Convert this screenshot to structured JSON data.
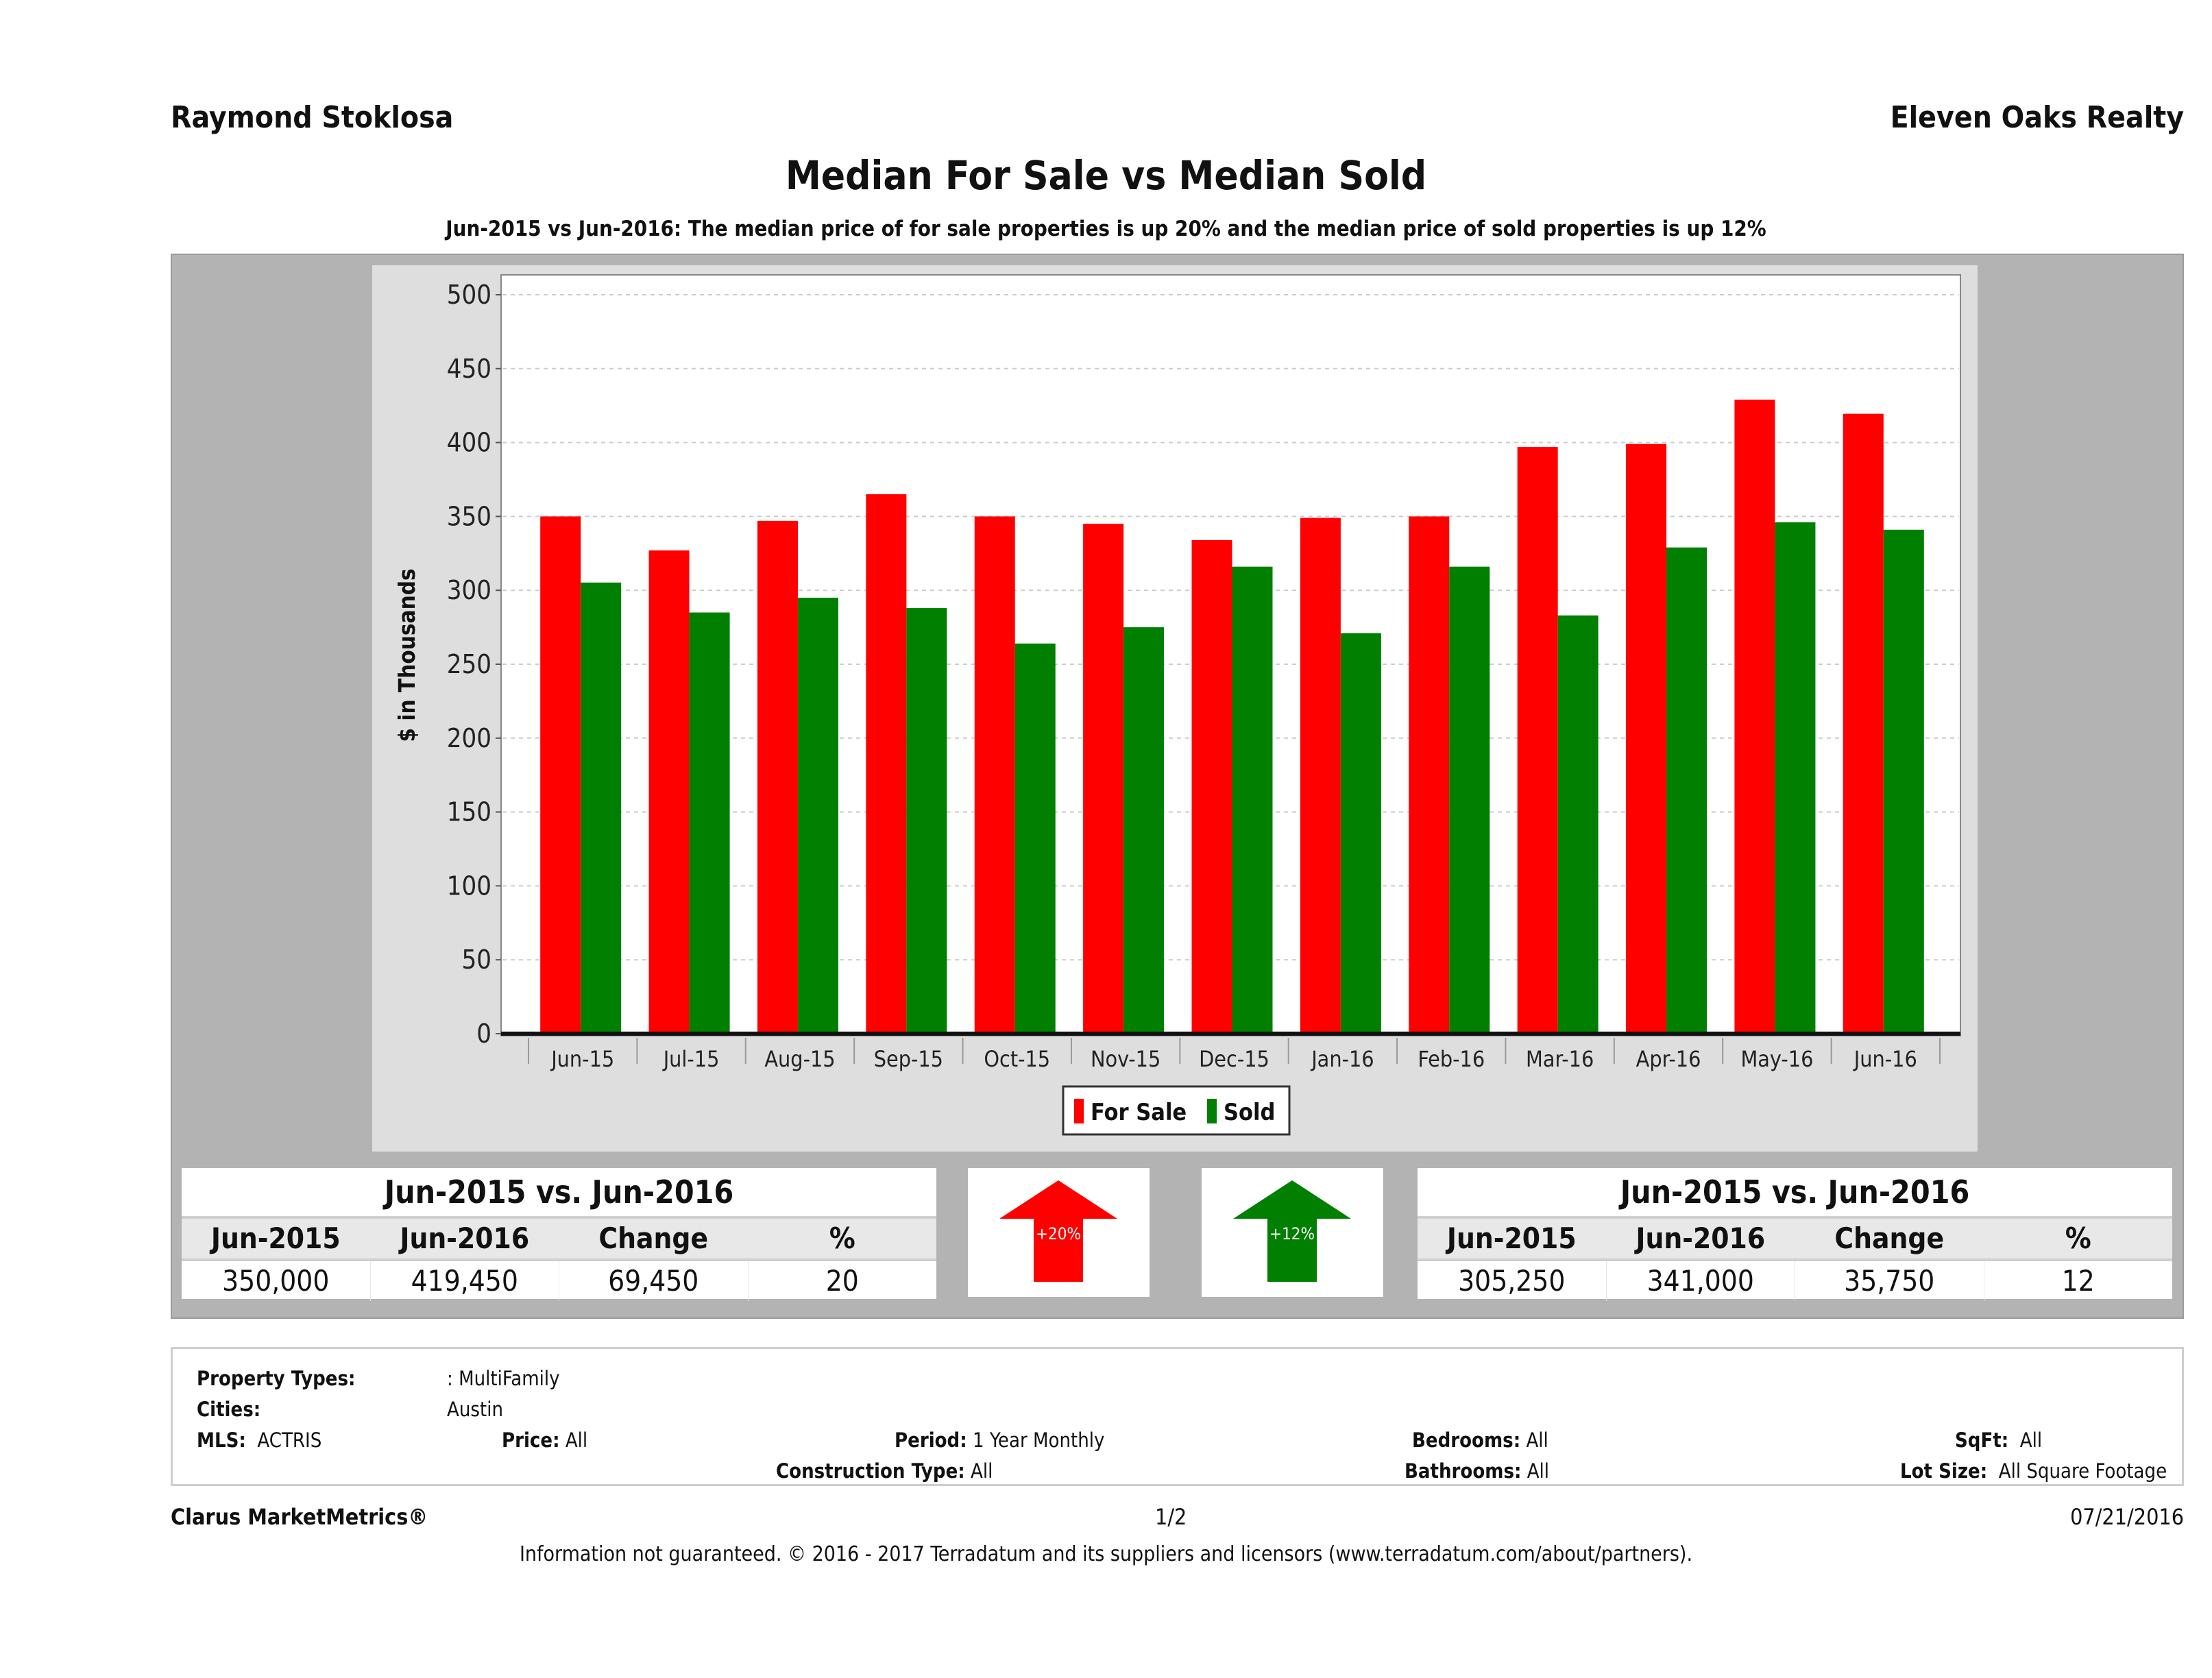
{
  "header": {
    "agent_name": "Raymond Stoklosa",
    "brokerage": "Eleven Oaks Realty",
    "title": "Median For Sale vs Median Sold",
    "subtitle": "Jun-2015 vs Jun-2016: The median price of for sale properties is up 20% and the median price of sold properties is up 12%"
  },
  "colors": {
    "for_sale": "#ff0000",
    "sold": "#007f00",
    "panel": "#b3b3b3",
    "chart_bg": "#dedede"
  },
  "chart_data": {
    "type": "bar",
    "title": "Median For Sale vs Median Sold",
    "xlabel": "",
    "ylabel": "$ in Thousands",
    "ylim": [
      0,
      500
    ],
    "yticks": [
      0,
      50,
      100,
      150,
      200,
      250,
      300,
      350,
      400,
      450,
      500
    ],
    "grid": true,
    "legend": "bottom-center",
    "categories": [
      "Jun-15",
      "Jul-15",
      "Aug-15",
      "Sep-15",
      "Oct-15",
      "Nov-15",
      "Dec-15",
      "Jan-16",
      "Feb-16",
      "Mar-16",
      "Apr-16",
      "May-16",
      "Jun-16"
    ],
    "series": [
      {
        "name": "For Sale",
        "color": "#ff0000",
        "values": [
          350,
          327,
          347,
          365,
          350,
          345,
          334,
          349,
          350,
          397,
          399,
          429,
          419.45
        ]
      },
      {
        "name": "Sold",
        "color": "#007f00",
        "values": [
          305.25,
          285,
          295,
          288,
          264,
          275,
          316,
          271,
          316,
          283,
          329,
          346,
          341
        ]
      }
    ]
  },
  "summary": {
    "for_sale": {
      "caption": "Jun-2015 vs. Jun-2016",
      "headers": [
        "Jun-2015",
        "Jun-2016",
        "Change",
        "%"
      ],
      "values": [
        "350,000",
        "419,450",
        "69,450",
        "20"
      ],
      "arrow_label": "+20%",
      "arrow_direction": "up"
    },
    "sold": {
      "caption": "Jun-2015 vs. Jun-2016",
      "headers": [
        "Jun-2015",
        "Jun-2016",
        "Change",
        "%"
      ],
      "values": [
        "305,250",
        "341,000",
        "35,750",
        "12"
      ],
      "arrow_label": "+12%",
      "arrow_direction": "up"
    }
  },
  "criteria": {
    "property_types_label": "Property Types:",
    "property_types": ": MultiFamily",
    "cities_label": "Cities:",
    "cities": "Austin",
    "mls_label": "MLS:",
    "mls": "ACTRIS",
    "price_label": "Price:",
    "price": "All",
    "period_label": "Period:",
    "period": "1 Year Monthly",
    "construction_label": "Construction Type:",
    "construction": "All",
    "bedrooms_label": "Bedrooms:",
    "bedrooms": "All",
    "bathrooms_label": "Bathrooms:",
    "bathrooms": "All",
    "sqft_label": "SqFt:",
    "sqft": "All",
    "lot_label": "Lot Size:",
    "lot": "All Square Footage"
  },
  "footer": {
    "product": "Clarus MarketMetrics®",
    "page": "1/2",
    "date": "07/21/2016",
    "disclaimer": "Information not guaranteed. © 2016 - 2017 Terradatum and its suppliers and licensors (www.terradatum.com/about/partners)."
  }
}
